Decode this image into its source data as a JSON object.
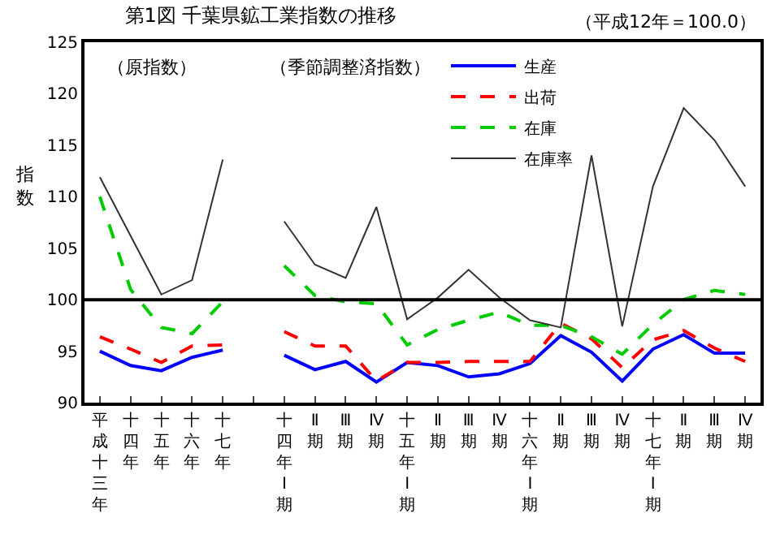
{
  "chart_data": {
    "type": "line",
    "title": "第1図 千葉県鉱工業指数の推移",
    "subtitle": "（平成12年＝100.0）",
    "ylabel": "指数",
    "annotations": [
      "（原指数）",
      "（季節調整済指数）"
    ],
    "categories": [
      "平成十三年",
      "十四年",
      "十五年",
      "十六年",
      "十七年",
      null,
      "十四年Ⅰ期",
      "Ⅱ期",
      "Ⅲ期",
      "Ⅳ期",
      "十五年Ⅰ期",
      "Ⅱ期",
      "Ⅲ期",
      "Ⅳ期",
      "十六年Ⅰ期",
      "Ⅱ期",
      "Ⅲ期",
      "Ⅳ期",
      "十七年Ⅰ期",
      "Ⅱ期",
      "Ⅲ期",
      "Ⅳ期"
    ],
    "series": [
      {
        "name": "生産",
        "color": "#0000ff",
        "line_style": "solid",
        "values": [
          95.0,
          93.6,
          93.1,
          94.4,
          95.1,
          null,
          94.6,
          93.2,
          94.0,
          92.0,
          93.9,
          93.6,
          92.5,
          92.8,
          93.8,
          96.5,
          94.9,
          92.1,
          95.2,
          96.6,
          94.8,
          94.8
        ]
      },
      {
        "name": "出荷",
        "color": "#ff0000",
        "line_style": "dashed",
        "values": [
          96.4,
          95.2,
          93.9,
          95.5,
          95.6,
          null,
          96.9,
          95.5,
          95.5,
          92.1,
          93.9,
          93.9,
          94.0,
          94.0,
          94.0,
          97.7,
          96.2,
          93.4,
          96.1,
          97.0,
          95.3,
          94.0
        ]
      },
      {
        "name": "在庫",
        "color": "#00cc00",
        "line_style": "dashed",
        "values": [
          110.0,
          101.0,
          97.3,
          96.7,
          99.8,
          null,
          103.3,
          100.4,
          99.8,
          99.6,
          95.6,
          97.1,
          98.0,
          98.8,
          97.5,
          97.5,
          96.4,
          94.7,
          97.6,
          100.0,
          100.9,
          100.5
        ]
      },
      {
        "name": "在庫率",
        "color": "#333333",
        "line_style": "solid",
        "values": [
          111.9,
          106.2,
          100.5,
          101.9,
          113.6,
          null,
          107.6,
          103.4,
          102.1,
          109.0,
          98.1,
          100.2,
          102.9,
          100.2,
          98.0,
          97.3,
          114.0,
          97.4,
          111.0,
          118.6,
          115.5,
          111.0
        ]
      }
    ],
    "ylim": [
      90,
      125
    ],
    "yticks": [
      90,
      95,
      100,
      105,
      110,
      115,
      120,
      125
    ],
    "ref_lines": [
      {
        "axis": "y",
        "value": 100,
        "color": "#000000"
      }
    ],
    "grid": false,
    "legend": "top right",
    "marker": "none"
  }
}
